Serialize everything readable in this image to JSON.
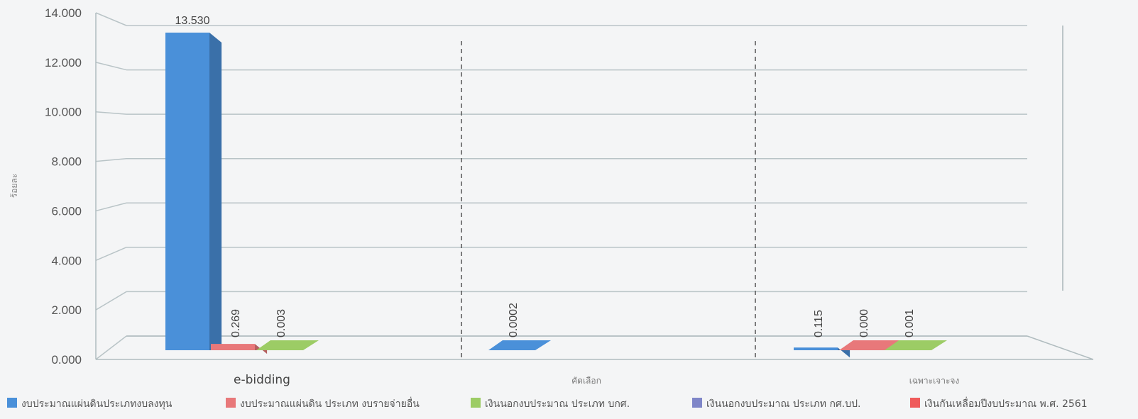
{
  "chart_data": {
    "type": "bar",
    "title": "",
    "ylabel": "ร้อยละ",
    "xlabel": "",
    "ylim": [
      0,
      14
    ],
    "y_ticks": [
      "0.000",
      "2.000",
      "4.000",
      "6.000",
      "8.000",
      "10.000",
      "12.000",
      "14.000"
    ],
    "y_tick_values": [
      0,
      2,
      4,
      6,
      8,
      10,
      12,
      14
    ],
    "grid": true,
    "legend_position": "bottom",
    "categories": [
      "e-bidding",
      "คัดเลือก",
      "เฉพาะเจาะจง"
    ],
    "series": [
      {
        "name": "งบประมาณแผ่นดินประเภทงบลงทุน",
        "color": "#4a90d9",
        "values": [
          13.53,
          0.0002,
          0.115
        ],
        "labels": [
          "13.530",
          "0.0002",
          "0.115"
        ]
      },
      {
        "name": "งบประมาณแผ่นดิน ประเภท งบรายจ่ายอื่น",
        "color": "#e8787a",
        "values": [
          0.269,
          null,
          0.0
        ],
        "labels": [
          "0.269",
          null,
          "0.000"
        ]
      },
      {
        "name": "เงินนอกงบประมาณ ประเภท บกศ.",
        "color": "#9ccc65",
        "values": [
          0.003,
          null,
          0.001
        ],
        "labels": [
          "0.003",
          null,
          "0.001"
        ]
      },
      {
        "name": "เงินนอกงบประมาณ ประเภท กศ.บป.",
        "color": "#7f86c8",
        "values": [
          null,
          null,
          null
        ],
        "labels": [
          null,
          null,
          null
        ]
      },
      {
        "name": "เงินกันเหลื่อมปีงบประมาณ พ.ศ. 2561",
        "color": "#ef5b5b",
        "values": [
          null,
          null,
          null
        ],
        "labels": [
          null,
          null,
          null
        ]
      }
    ]
  }
}
